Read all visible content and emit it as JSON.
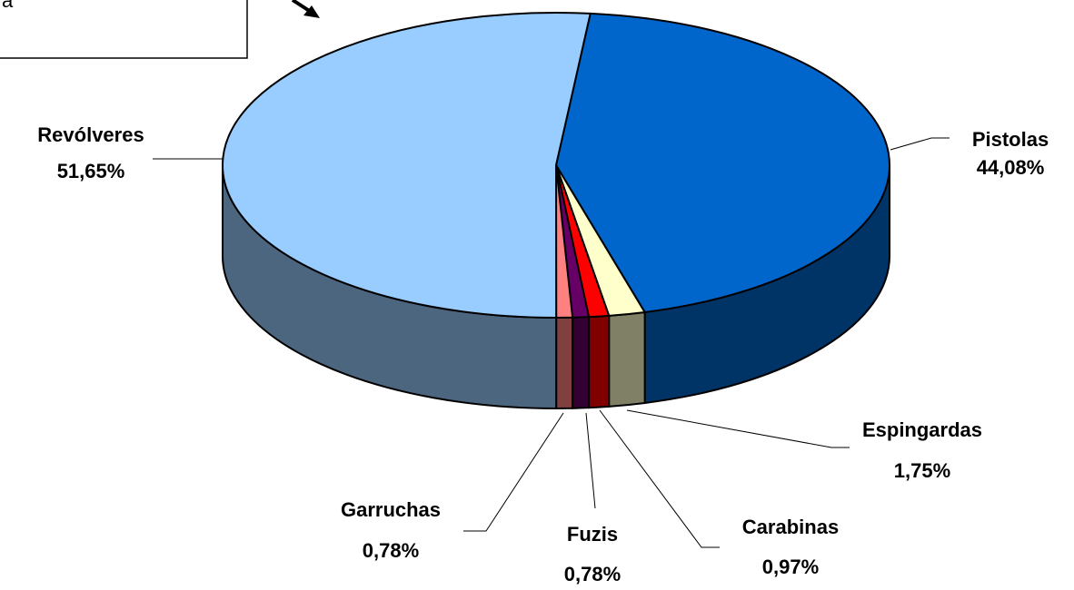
{
  "chart_data": {
    "type": "pie",
    "annotation": "a",
    "categories": [
      "Pistolas",
      "Espingardas",
      "Carabinas",
      "Fuzis",
      "Garruchas",
      "Revólveres"
    ],
    "values": [
      44.08,
      1.75,
      0.97,
      0.78,
      0.78,
      51.65
    ],
    "value_labels": [
      "44,08%",
      "1,75%",
      "0,97%",
      "0,78%",
      "0,78%",
      "51,65%"
    ],
    "colors": [
      "#0066cc",
      "#ffffcc",
      "#ff0000",
      "#660066",
      "#ff8080",
      "#99ccff"
    ]
  }
}
